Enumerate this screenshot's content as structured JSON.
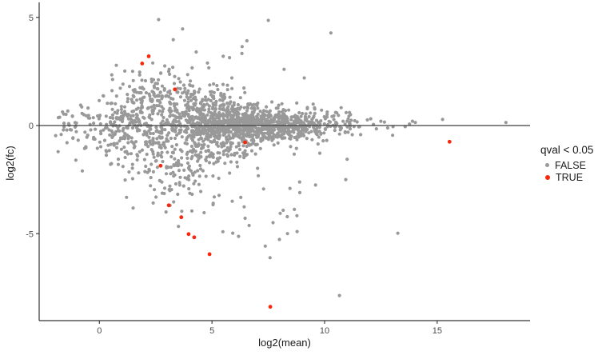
{
  "figure": {
    "background": "#ffffff",
    "axis_line_color": "#333333",
    "zero_line_color": "#3f3f3f",
    "tick_label_color": "#4d4d4d",
    "text_color": "#1a1a1a"
  },
  "legend": {
    "title": "qval < 0.05",
    "items": [
      {
        "label": "FALSE",
        "color": "#999999"
      },
      {
        "label": "TRUE",
        "color": "#f8280c"
      }
    ]
  },
  "chart_data": {
    "type": "scatter",
    "title": "",
    "xlabel": "log2(mean)",
    "ylabel": "log2(fc)",
    "xlim": [
      -2.7,
      19.2
    ],
    "ylim": [
      -9.0,
      5.6
    ],
    "x_ticks": [
      0,
      5,
      10,
      15
    ],
    "y_ticks": [
      -5,
      0,
      5
    ],
    "grid": false,
    "legend_position": "right",
    "hline_y": 0,
    "point_radius": {
      "FALSE": 2.1,
      "TRUE": 2.4
    },
    "series": [
      {
        "name": "FALSE",
        "color": "#999999",
        "outlier_points": [
          [
            2.37,
            2.89
          ],
          [
            1.79,
            2.47
          ],
          [
            2.05,
            2.07
          ],
          [
            3.1,
            2.6
          ],
          [
            4.3,
            3.4
          ],
          [
            4.8,
            2.89
          ],
          [
            5.5,
            3.2
          ],
          [
            5.78,
            3.14
          ],
          [
            6.33,
            3.33
          ],
          [
            6.34,
            3.65
          ],
          [
            6.55,
            3.92
          ],
          [
            7.5,
            4.86
          ],
          [
            10.28,
            4.28
          ],
          [
            8.2,
            2.6
          ],
          [
            9.1,
            2.2
          ],
          [
            2.9,
            -2.9
          ],
          [
            4.5,
            -3.05
          ],
          [
            5.1,
            -3.3
          ],
          [
            5.9,
            -3.5
          ],
          [
            6.43,
            -3.76
          ],
          [
            6.47,
            -4.29
          ],
          [
            6.65,
            -4.62
          ],
          [
            7.71,
            -4.49
          ],
          [
            8.03,
            -4.06
          ],
          [
            8.16,
            -3.92
          ],
          [
            8.77,
            -4.17
          ],
          [
            8.9,
            -3.1
          ],
          [
            9.6,
            -2.75
          ],
          [
            7.58,
            -6.11
          ],
          [
            10.66,
            -7.86
          ],
          [
            13.25,
            -4.98
          ],
          [
            10.94,
            -2.5
          ],
          [
            11.0,
            -1.56
          ],
          [
            10.5,
            0.1
          ],
          [
            10.7,
            -0.2
          ],
          [
            10.96,
            0.6
          ],
          [
            11.0,
            0.2
          ],
          [
            11.34,
            0.22
          ],
          [
            11.55,
            -0.05
          ],
          [
            11.6,
            -0.42
          ],
          [
            11.9,
            0.26
          ],
          [
            12.05,
            0.31
          ],
          [
            12.17,
            0.05
          ],
          [
            12.3,
            -0.15
          ],
          [
            12.5,
            0.2
          ],
          [
            12.66,
            0.16
          ],
          [
            12.8,
            -0.11
          ],
          [
            13.02,
            -0.45
          ],
          [
            13.04,
            -0.05
          ],
          [
            13.58,
            -0.05
          ],
          [
            13.77,
            0.07
          ],
          [
            13.9,
            0.2
          ],
          [
            14.03,
            0.14
          ],
          [
            15.24,
            0.28
          ],
          [
            18.05,
            0.14
          ]
        ],
        "cloud": {
          "description": "dense MA-plot background cloud, ~1900 genes, funnel shaped, centered on log2(fc)=0",
          "seed": 1337,
          "n_main": 1450,
          "n_band": 420,
          "n_low_tail": 26,
          "x_mean": 4.4,
          "x_sd": 2.65,
          "x_min": -2.05,
          "x_max": 11.6,
          "sigma_base": 0.42,
          "sigma_peak": 0.78,
          "sigma_center": 3.0,
          "sigma_width": 9.0,
          "tail_prob": 0.08,
          "tail_mult": 1.9,
          "neg_skew": 1.12,
          "band": {
            "x_mean": 7.6,
            "x_sd": 1.9,
            "x_min": 3.8,
            "x_max": 11.3,
            "y_mean": 0.05,
            "y_sd": 0.3
          },
          "low_tail": {
            "x_min": 2.2,
            "x_max": 9.8,
            "y_hi": -2.6,
            "y_lo": -5.6
          },
          "y_clip_hi": 4.9,
          "y_clip_lo": -6.2
        }
      },
      {
        "name": "TRUE",
        "color": "#f8280c",
        "points": [
          [
            1.9,
            2.87
          ],
          [
            2.19,
            3.2
          ],
          [
            3.35,
            1.67
          ],
          [
            2.72,
            -1.86
          ],
          [
            3.08,
            -3.69
          ],
          [
            3.64,
            -4.24
          ],
          [
            3.96,
            -5.02
          ],
          [
            4.21,
            -5.17
          ],
          [
            4.89,
            -5.95
          ],
          [
            6.47,
            -0.78
          ],
          [
            7.59,
            -8.38
          ],
          [
            15.55,
            -0.75
          ]
        ]
      }
    ]
  }
}
